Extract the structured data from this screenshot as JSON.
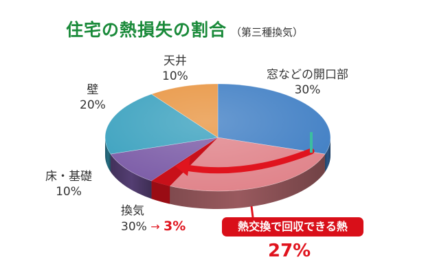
{
  "title": "住宅の熱損失の割合",
  "subtitle": "（第三種換気）",
  "colors": {
    "title": "#1a8a3a",
    "accent_red": "#e0141e",
    "badge_bg": "#d90f19",
    "window": "#3f7ec4",
    "ventilation": "#e0838a",
    "floor": "#7a5aa6",
    "wall": "#38a0be",
    "ceiling": "#e89440",
    "indicator": "#3bbfa0"
  },
  "chart_data": {
    "type": "pie",
    "title": "住宅の熱損失の割合",
    "subtitle": "（第三種換気）",
    "slices": [
      {
        "label": "窓などの開口部",
        "value": 30,
        "display": "30%",
        "color": "#3f7ec4"
      },
      {
        "label": "換気",
        "value": 30,
        "display": "30%",
        "color": "#e0838a"
      },
      {
        "label": "床・基礎",
        "value": 10,
        "display": "10%",
        "color": "#7a5aa6"
      },
      {
        "label": "壁",
        "value": 20,
        "display": "20%",
        "color": "#38a0be"
      },
      {
        "label": "天井",
        "value": 10,
        "display": "10%",
        "color": "#e89440"
      }
    ],
    "annotations": {
      "ventilation_reduced": "3%",
      "ventilation_arrow": "→",
      "recovered_label": "熱交換で回収できる熱",
      "recovered_value": "27%"
    }
  }
}
